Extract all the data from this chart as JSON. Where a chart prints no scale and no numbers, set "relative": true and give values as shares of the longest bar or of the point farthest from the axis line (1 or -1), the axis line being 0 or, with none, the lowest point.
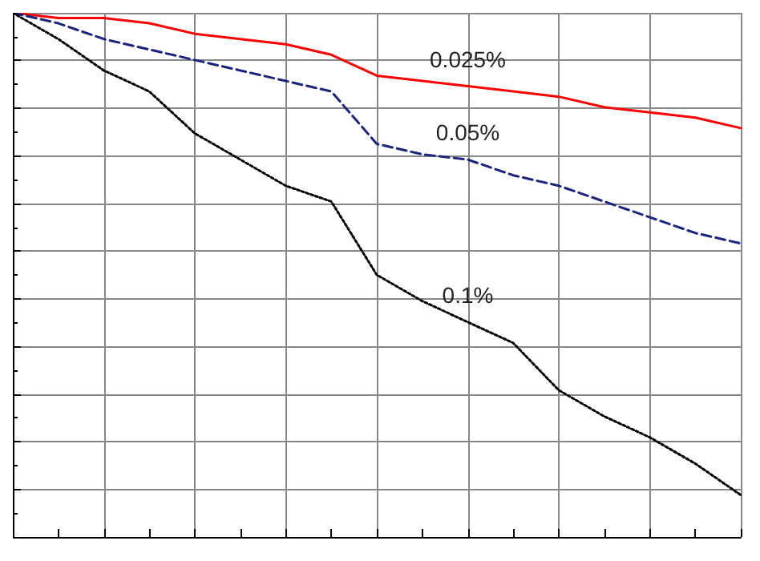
{
  "chart_data": {
    "type": "line",
    "relative": true,
    "grid": true,
    "marker": "none",
    "categories": [
      null,
      null,
      null,
      null,
      null,
      null,
      null,
      null,
      null,
      null,
      null,
      null,
      null,
      null,
      null,
      null,
      null
    ],
    "series": [
      {
        "name": "0.025%",
        "color": "#ff0000",
        "line_style": "solid",
        "values": [
          1.0,
          0.99,
          0.99,
          0.98,
          0.96,
          0.95,
          0.94,
          0.92,
          0.88,
          0.87,
          0.86,
          0.85,
          0.84,
          0.82,
          0.81,
          0.8,
          0.78
        ]
      },
      {
        "name": "0.05%",
        "color": "#1a237e",
        "line_style": "dashed",
        "values": [
          1.0,
          0.98,
          0.95,
          0.93,
          0.91,
          0.89,
          0.87,
          0.85,
          0.75,
          0.73,
          0.72,
          0.69,
          0.67,
          0.64,
          0.61,
          0.58,
          0.56
        ]
      },
      {
        "name": "0.1%",
        "color": "#000000",
        "line_style": "dotted",
        "values": [
          1.0,
          0.95,
          0.89,
          0.85,
          0.77,
          0.72,
          0.67,
          0.64,
          0.5,
          0.45,
          0.41,
          0.37,
          0.28,
          0.23,
          0.19,
          0.14,
          0.08
        ]
      }
    ]
  }
}
